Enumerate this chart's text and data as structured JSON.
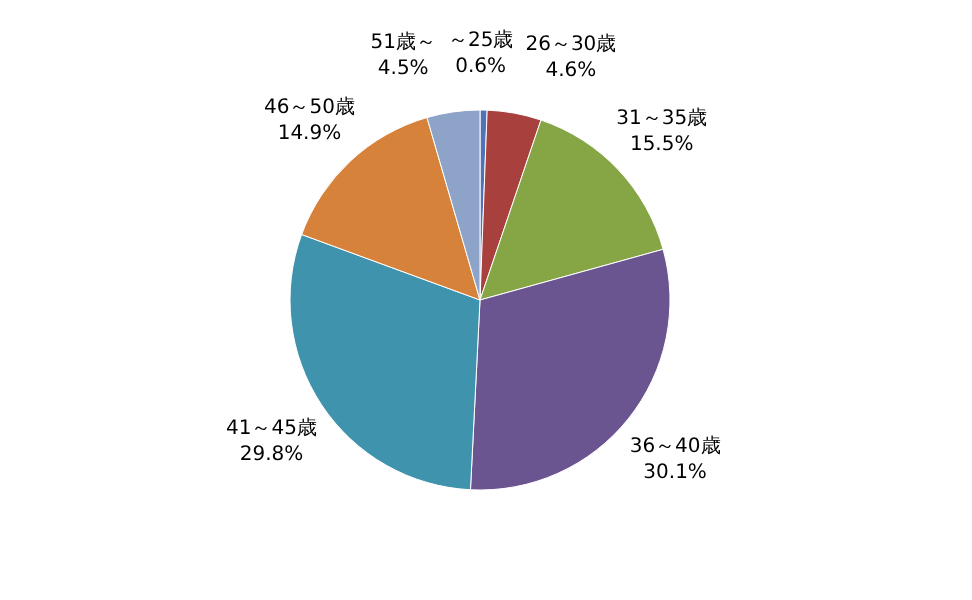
{
  "chart_data": {
    "type": "pie",
    "categories": [
      "～25歳",
      "26～30歳",
      "31～35歳",
      "36～40歳",
      "41～45歳",
      "46～50歳",
      "51歳～"
    ],
    "values": [
      0.6,
      4.6,
      15.5,
      30.1,
      29.8,
      14.9,
      4.5
    ],
    "value_labels": [
      "0.6%",
      "4.6%",
      "15.5%",
      "30.1%",
      "29.8%",
      "14.9%",
      "4.5%"
    ],
    "colors": [
      "#4f72b8",
      "#a8403d",
      "#86a545",
      "#6b5591",
      "#3f93ad",
      "#d7823a",
      "#8ea3c8"
    ]
  }
}
